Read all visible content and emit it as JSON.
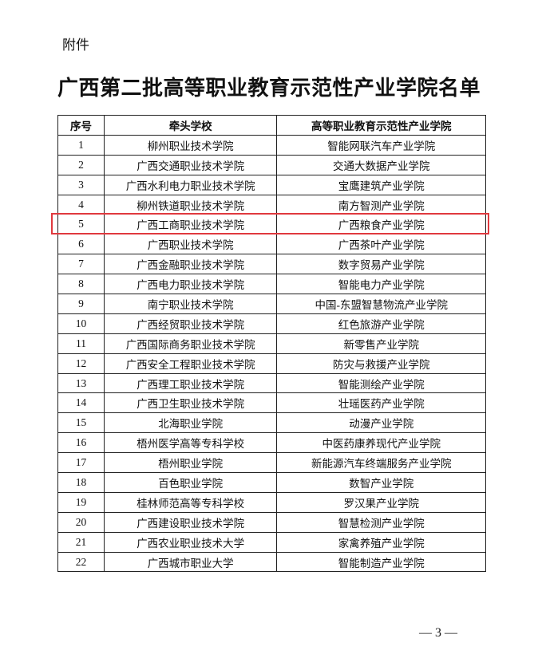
{
  "attachment_label": "附件",
  "title": "广西第二批高等职业教育示范性产业学院名单",
  "table": {
    "headers": [
      "序号",
      "牵头学校",
      "高等职业教育示范性产业学院"
    ],
    "rows": [
      [
        "1",
        "柳州职业技术学院",
        "智能网联汽车产业学院"
      ],
      [
        "2",
        "广西交通职业技术学院",
        "交通大数据产业学院"
      ],
      [
        "3",
        "广西水利电力职业技术学院",
        "宝鹰建筑产业学院"
      ],
      [
        "4",
        "柳州铁道职业技术学院",
        "南方智测产业学院"
      ],
      [
        "5",
        "广西工商职业技术学院",
        "广西粮食产业学院"
      ],
      [
        "6",
        "广西职业技术学院",
        "广西茶叶产业学院"
      ],
      [
        "7",
        "广西金融职业技术学院",
        "数字贸易产业学院"
      ],
      [
        "8",
        "广西电力职业技术学院",
        "智能电力产业学院"
      ],
      [
        "9",
        "南宁职业技术学院",
        "中国-东盟智慧物流产业学院"
      ],
      [
        "10",
        "广西经贸职业技术学院",
        "红色旅游产业学院"
      ],
      [
        "11",
        "广西国际商务职业技术学院",
        "新零售产业学院"
      ],
      [
        "12",
        "广西安全工程职业技术学院",
        "防灾与救援产业学院"
      ],
      [
        "13",
        "广西理工职业技术学院",
        "智能测绘产业学院"
      ],
      [
        "14",
        "广西卫生职业技术学院",
        "壮瑶医药产业学院"
      ],
      [
        "15",
        "北海职业学院",
        "动漫产业学院"
      ],
      [
        "16",
        "梧州医学高等专科学校",
        "中医药康养现代产业学院"
      ],
      [
        "17",
        "梧州职业学院",
        "新能源汽车终端服务产业学院"
      ],
      [
        "18",
        "百色职业学院",
        "数智产业学院"
      ],
      [
        "19",
        "桂林师范高等专科学校",
        "罗汉果产业学院"
      ],
      [
        "20",
        "广西建设职业技术学院",
        "智慧检测产业学院"
      ],
      [
        "21",
        "广西农业职业技术大学",
        "家禽养殖产业学院"
      ],
      [
        "22",
        "广西城市职业大学",
        "智能制造产业学院"
      ]
    ],
    "highlighted_row": "5"
  },
  "highlight_color": "#e0393e",
  "page_number": "— 3 —"
}
